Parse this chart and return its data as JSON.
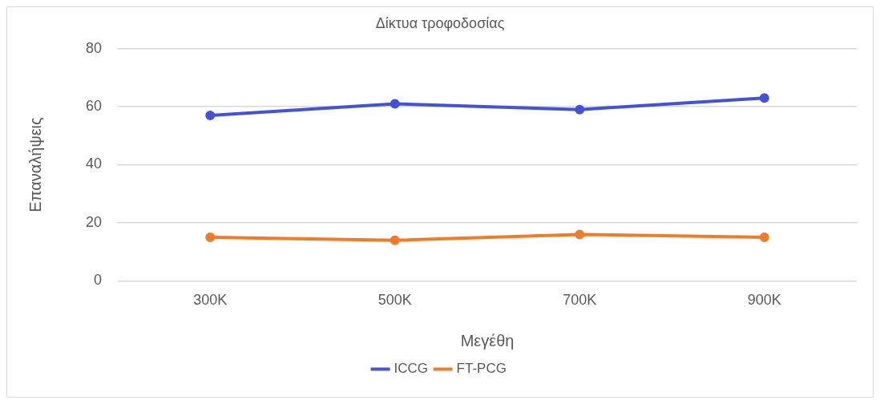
{
  "chart_data": {
    "type": "line",
    "title": "Δίκτυα τροφοδοσίας",
    "xlabel": "Μεγέθη",
    "ylabel": "Επαναλήψεις",
    "categories": [
      "300K",
      "500K",
      "700K",
      "900K"
    ],
    "series": [
      {
        "name": "ICCG",
        "color": "#4352d8",
        "values": [
          57,
          61,
          59,
          63
        ]
      },
      {
        "name": "FT-PCG",
        "color": "#f07c2a",
        "values": [
          15,
          14,
          16,
          15
        ]
      }
    ],
    "ylim": [
      0,
      80
    ],
    "yticks": [
      0,
      20,
      40,
      60,
      80
    ],
    "grid": "y",
    "legend": "bottom",
    "marker": "circle",
    "line_style": "solid"
  }
}
